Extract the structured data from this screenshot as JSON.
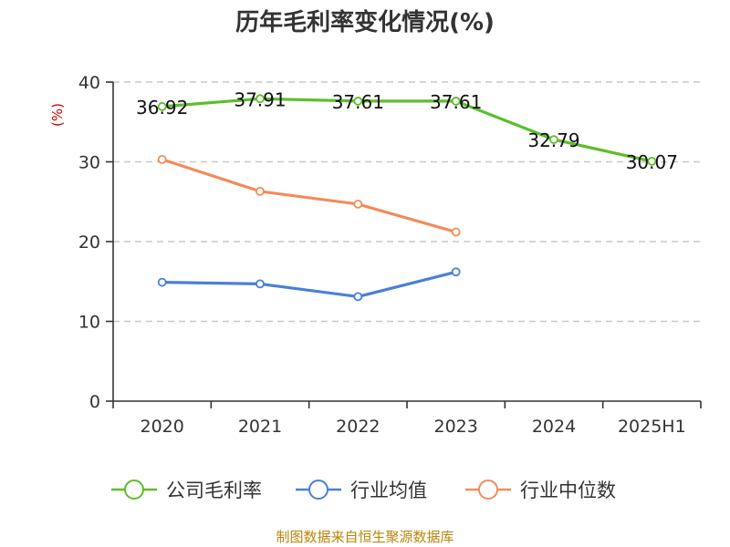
{
  "chart_data": {
    "type": "line",
    "title": "历年毛利率变化情况(%)",
    "ylabel": "(%)",
    "xlabel": "",
    "ylim": [
      0,
      40
    ],
    "yticks": [
      0,
      10,
      20,
      30,
      40
    ],
    "categories": [
      "2020",
      "2021",
      "2022",
      "2023",
      "2024",
      "2025H1"
    ],
    "grid": true,
    "legend_position": "bottom",
    "series": [
      {
        "name": "公司毛利率",
        "color": "#5cbf2a",
        "values": [
          36.92,
          37.91,
          37.61,
          37.61,
          32.79,
          30.07
        ],
        "labels": [
          "36.92",
          "37.91",
          "37.61",
          "37.61",
          "32.79",
          "30.07"
        ]
      },
      {
        "name": "行业均值",
        "color": "#4a7fd6",
        "values": [
          14.9,
          14.7,
          13.1,
          16.2,
          null,
          null
        ]
      },
      {
        "name": "行业中位数",
        "color": "#f28c5a",
        "values": [
          30.3,
          26.3,
          24.7,
          21.2,
          null,
          null
        ]
      }
    ]
  },
  "source": "制图数据来自恒生聚源数据库"
}
